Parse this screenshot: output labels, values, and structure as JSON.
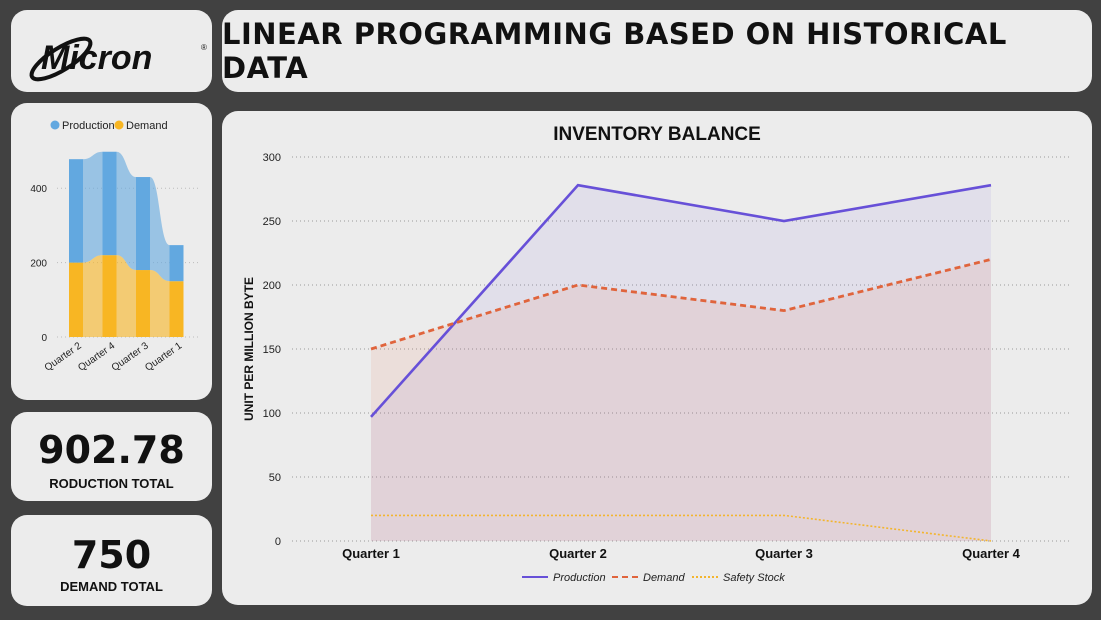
{
  "logo": {
    "text": "Micron",
    "registered": "®"
  },
  "header": {
    "title": "LINEAR PROGRAMMING BASED ON HISTORICAL DATA"
  },
  "kpis": {
    "production": {
      "value": "902.78",
      "label": "RODUCTION TOTAL"
    },
    "demand": {
      "value": "750",
      "label": "DEMAND TOTAL"
    }
  },
  "colors": {
    "production": "#6750d8",
    "demand": "#e0643c",
    "safety_stock": "#f3b52e",
    "mini_production": "#62a8e0",
    "mini_demand": "#f8b623"
  },
  "chart_data": [
    {
      "type": "bar",
      "legend_position": "top",
      "categories": [
        "Quarter 2",
        "Quarter 4",
        "Quarter 3",
        "Quarter 1"
      ],
      "series": [
        {
          "name": "Production",
          "values": [
            278,
            278,
            250,
            97
          ]
        },
        {
          "name": "Demand",
          "values": [
            200,
            220,
            180,
            150
          ]
        }
      ],
      "stacked": true,
      "y_ticks": [
        "0",
        "200",
        "400"
      ],
      "ylim": [
        0,
        500
      ],
      "grid": true
    },
    {
      "type": "line",
      "title": "INVENTORY BALANCE",
      "ylabel": "UNIT PER MILLION BYTE",
      "categories": [
        "Quarter 1",
        "Quarter 2",
        "Quarter 3",
        "Quarter 4"
      ],
      "series": [
        {
          "name": "Production",
          "values": [
            97,
            278,
            250,
            278
          ],
          "style": "solid",
          "area_fill": true
        },
        {
          "name": "Demand",
          "values": [
            150,
            200,
            180,
            220
          ],
          "style": "dashed",
          "area_fill": true
        },
        {
          "name": "Safety Stock",
          "values": [
            20,
            20,
            20,
            0
          ],
          "style": "dotted",
          "area_fill": false
        }
      ],
      "y_ticks": [
        "0",
        "50",
        "100",
        "150",
        "200",
        "250",
        "300"
      ],
      "ylim": [
        0,
        300
      ],
      "grid": true,
      "legend_position": "bottom"
    }
  ]
}
